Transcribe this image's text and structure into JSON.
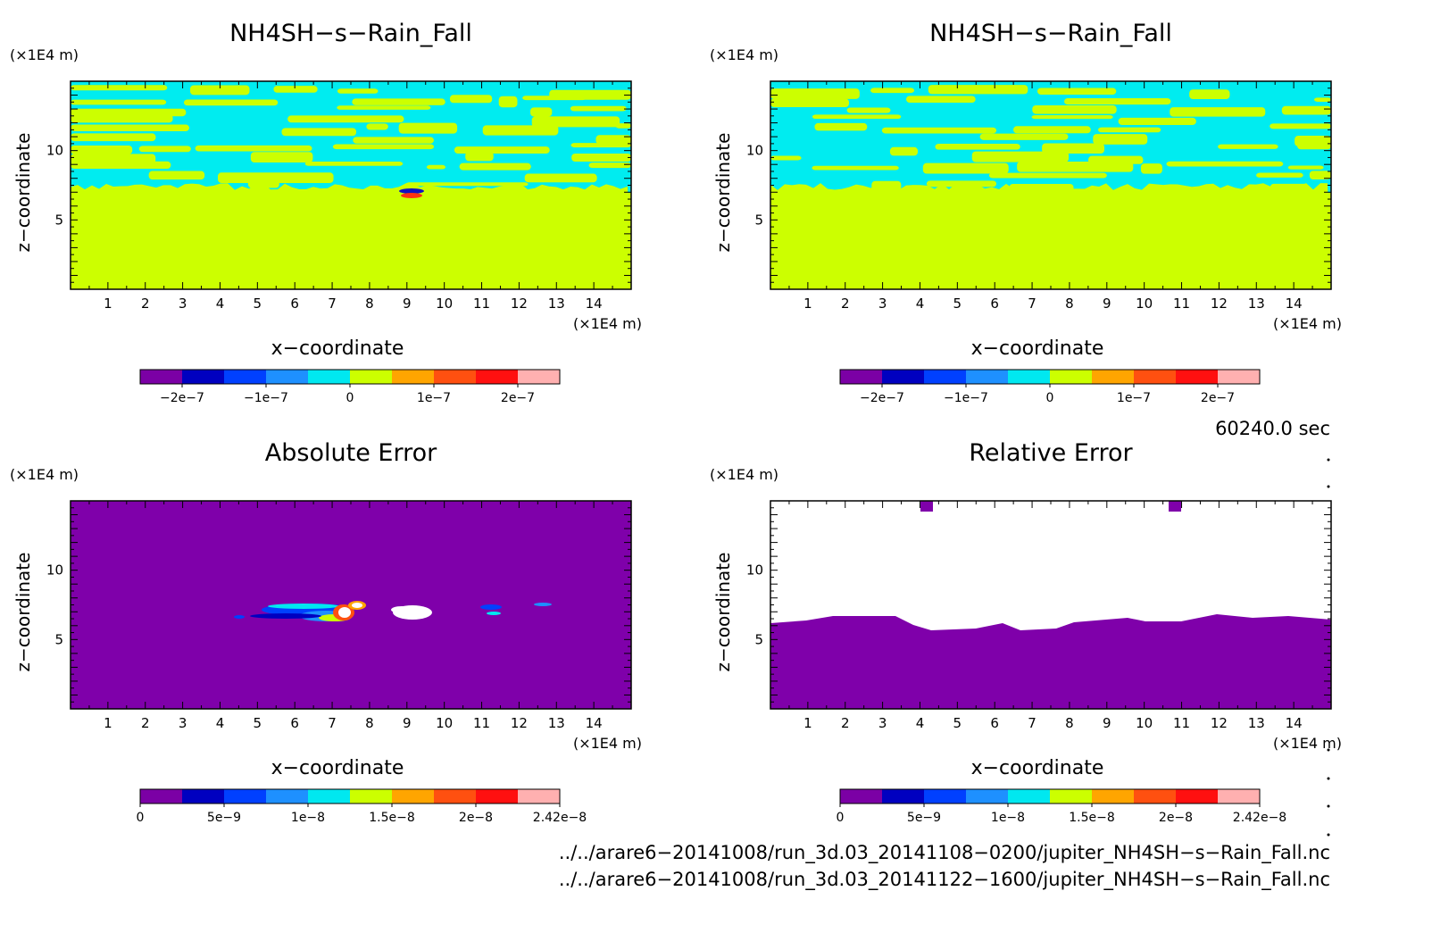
{
  "panels": [
    {
      "title": "NH4SH−s−Rain_Fall",
      "z_unit": "(×1E4 m)",
      "x_unit": "(×1E4 m)",
      "xlabel": "x−coordinate",
      "ylabel": "z−coordinate",
      "colorbar_labels": [
        "−2e−7",
        "−1e−7",
        "0",
        "1e−7",
        "2e−7"
      ]
    },
    {
      "title": "NH4SH−s−Rain_Fall",
      "z_unit": "(×1E4 m)",
      "x_unit": "(×1E4 m)",
      "xlabel": "x−coordinate",
      "ylabel": "z−coordinate",
      "colorbar_labels": [
        "−2e−7",
        "−1e−7",
        "0",
        "1e−7",
        "2e−7"
      ]
    },
    {
      "title": "Absolute Error",
      "z_unit": "(×1E4 m)",
      "x_unit": "(×1E4 m)",
      "xlabel": "x−coordinate",
      "ylabel": "z−coordinate",
      "colorbar_labels": [
        "0",
        "5e−9",
        "1e−8",
        "1.5e−8",
        "2e−8",
        "2.42e−8"
      ]
    },
    {
      "title": "Relative Error",
      "z_unit": "(×1E4 m)",
      "x_unit": "(×1E4 m)",
      "xlabel": "x−coordinate",
      "ylabel": "z−coordinate",
      "colorbar_labels": [
        "0",
        "5e−9",
        "1e−8",
        "1.5e−8",
        "2e−8",
        "2.42e−8"
      ]
    }
  ],
  "time_label": "60240.0 sec",
  "file_paths": [
    "../../arare6−20141008/run_3d.03_20141108−0200/jupiter_NH4SH−s−Rain_Fall.nc",
    "../../arare6−20141008/run_3d.03_20141122−1600/jupiter_NH4SH−s−Rain_Fall.nc"
  ],
  "colors": {
    "palette": [
      "#7b00a5",
      "#0000c0",
      "#0040ff",
      "#1e90ff",
      "#00e8f0",
      "#ccff00",
      "#ffa500",
      "#ff5010",
      "#ff1010",
      "#ffb0b0"
    ],
    "purple_fill": "#7f00aa",
    "yellow_fill": "#ccff00",
    "cyan_fill": "#00ecf0"
  },
  "chart_data": [
    {
      "type": "heatmap",
      "title": "NH4SH−s−Rain_Fall",
      "xlabel": "x−coordinate",
      "ylabel": "z−coordinate",
      "x_ticks": [
        1,
        2,
        3,
        4,
        5,
        6,
        7,
        8,
        9,
        10,
        11,
        12,
        13,
        14
      ],
      "z_ticks": [
        5,
        10
      ],
      "xlim": [
        0,
        15
      ],
      "zlim": [
        0,
        15
      ],
      "colorbar": [
        "−2e−7",
        "−1e−7",
        "0",
        "1e−7",
        "2e−7"
      ],
      "description_values": {
        "background_level": "0",
        "upper_layer_z": [
          7,
          15
        ],
        "anomaly_x": 9,
        "anomaly_z": 7
      }
    },
    {
      "type": "heatmap",
      "title": "NH4SH−s−Rain_Fall",
      "xlabel": "x−coordinate",
      "ylabel": "z−coordinate",
      "x_ticks": [
        1,
        2,
        3,
        4,
        5,
        6,
        7,
        8,
        9,
        10,
        11,
        12,
        13,
        14
      ],
      "z_ticks": [
        5,
        10
      ],
      "xlim": [
        0,
        15
      ],
      "zlim": [
        0,
        15
      ],
      "colorbar": [
        "−2e−7",
        "−1e−7",
        "0",
        "1e−7",
        "2e−7"
      ]
    },
    {
      "type": "heatmap",
      "title": "Absolute Error",
      "xlabel": "x−coordinate",
      "ylabel": "z−coordinate",
      "x_ticks": [
        1,
        2,
        3,
        4,
        5,
        6,
        7,
        8,
        9,
        10,
        11,
        12,
        13,
        14
      ],
      "z_ticks": [
        5,
        10
      ],
      "xlim": [
        0,
        15
      ],
      "zlim": [
        0,
        15
      ],
      "colorbar": [
        "0",
        "5e−9",
        "1e−8",
        "1.5e−8",
        "2e−8",
        "2.42e−8"
      ],
      "max": 2.42e-08
    },
    {
      "type": "heatmap",
      "title": "Relative Error",
      "xlabel": "x−coordinate",
      "ylabel": "z−coordinate",
      "x_ticks": [
        1,
        2,
        3,
        4,
        5,
        6,
        7,
        8,
        9,
        10,
        11,
        12,
        13,
        14
      ],
      "z_ticks": [
        5,
        10
      ],
      "xlim": [
        0,
        15
      ],
      "zlim": [
        0,
        15
      ],
      "colorbar": [
        "0",
        "5e−9",
        "1e−8",
        "1.5e−8",
        "2e−8",
        "2.42e−8"
      ]
    }
  ]
}
